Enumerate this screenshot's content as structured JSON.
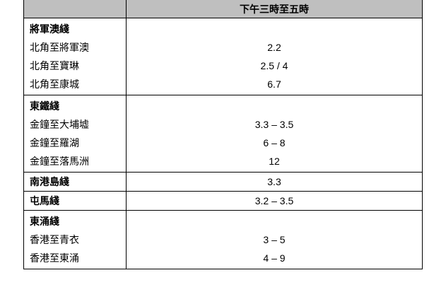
{
  "header": {
    "col1": "",
    "col2": "下午三時至五時"
  },
  "groups": [
    {
      "name": "將軍澳綫",
      "rows": [
        {
          "route": "北角至將軍澳",
          "value": "2.2"
        },
        {
          "route": "北角至寶琳",
          "value": "2.5 / 4"
        },
        {
          "route": "北角至康城",
          "value": "6.7"
        }
      ]
    },
    {
      "name": "東鐵綫",
      "rows": [
        {
          "route": "金鐘至大埔墟",
          "value": "3.3 – 3.5"
        },
        {
          "route": "金鐘至羅湖",
          "value": "6 – 8"
        },
        {
          "route": "金鐘至落馬洲",
          "value": "12"
        }
      ]
    },
    {
      "name": "南港島綫",
      "value": "3.3"
    },
    {
      "name": "屯馬綫",
      "value": "3.2 – 3.5"
    },
    {
      "name": "東涌綫",
      "rows": [
        {
          "route": "香港至青衣",
          "value": "3 – 5"
        },
        {
          "route": "香港至東涌",
          "value": "4 – 9"
        }
      ]
    }
  ]
}
